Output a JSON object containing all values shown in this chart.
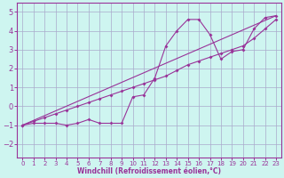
{
  "xlabel": "Windchill (Refroidissement éolien,°C)",
  "background_color": "#cef5f0",
  "grid_color": "#aaaacc",
  "line_color": "#993399",
  "spine_color": "#993399",
  "x_ticks": [
    0,
    1,
    2,
    3,
    4,
    5,
    6,
    7,
    8,
    9,
    10,
    11,
    12,
    13,
    14,
    15,
    16,
    17,
    18,
    19,
    20,
    21,
    22,
    23
  ],
  "y_ticks": [
    -2,
    -1,
    0,
    1,
    2,
    3,
    4,
    5
  ],
  "xlim": [
    -0.5,
    23.5
  ],
  "ylim": [
    -2.7,
    5.5
  ],
  "series1_x": [
    0,
    1,
    2,
    3,
    4,
    5,
    6,
    7,
    8,
    9,
    10,
    11,
    12,
    13,
    14,
    15,
    16,
    17,
    18,
    19,
    20,
    21,
    22,
    23
  ],
  "series1_y": [
    -1.0,
    -0.9,
    -0.9,
    -0.9,
    -1.0,
    -0.9,
    -0.7,
    -0.9,
    -0.9,
    -0.9,
    0.5,
    0.6,
    1.5,
    3.2,
    4.0,
    4.6,
    4.6,
    3.8,
    2.5,
    2.9,
    3.0,
    4.1,
    4.7,
    4.8
  ],
  "series2_x": [
    0,
    23
  ],
  "series2_y": [
    -1.0,
    4.8
  ],
  "series3_x": [
    0,
    1,
    2,
    3,
    4,
    5,
    6,
    7,
    8,
    9,
    10,
    11,
    12,
    13,
    14,
    15,
    16,
    17,
    18,
    19,
    20,
    21,
    22,
    23
  ],
  "series3_y": [
    -1.0,
    -0.8,
    -0.6,
    -0.4,
    -0.2,
    0.0,
    0.2,
    0.4,
    0.6,
    0.8,
    1.0,
    1.2,
    1.4,
    1.6,
    1.9,
    2.2,
    2.4,
    2.6,
    2.8,
    3.0,
    3.2,
    3.6,
    4.1,
    4.6
  ]
}
